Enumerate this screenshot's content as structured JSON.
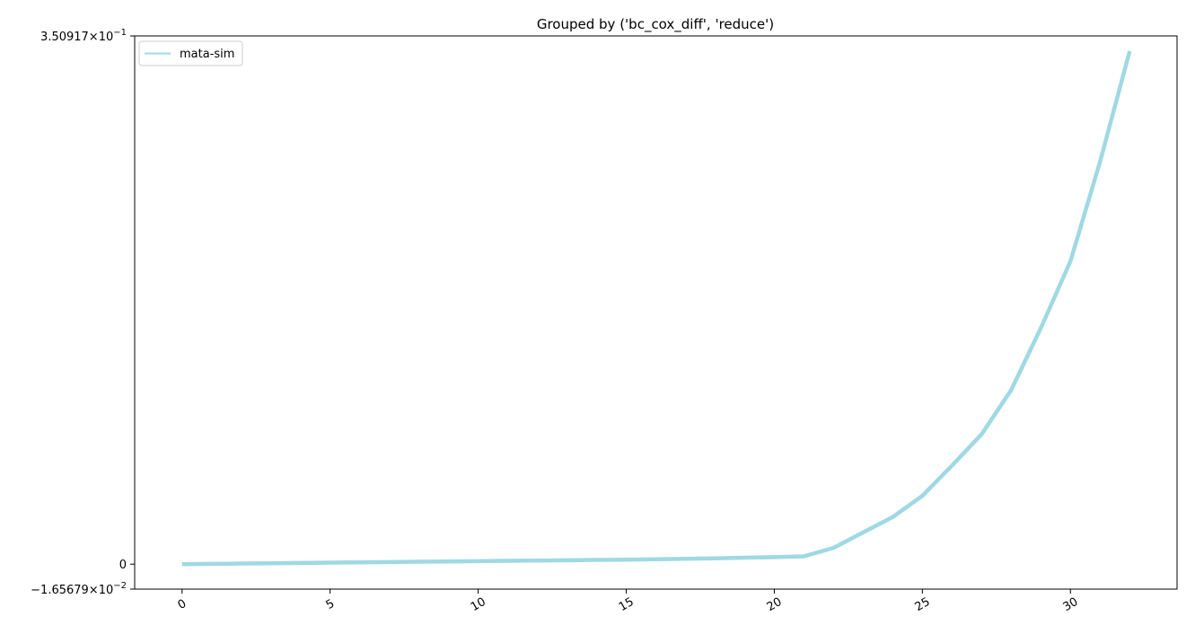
{
  "chart_data": {
    "type": "line",
    "title": "Grouped by ('bc_cox_diff', 'reduce')",
    "xlabel": "",
    "ylabel": "",
    "xlim": [
      -1.6,
      33.6
    ],
    "ylim": [
      -0.0165679,
      0.350917
    ],
    "x_ticks": [
      0,
      5,
      10,
      15,
      20,
      25,
      30
    ],
    "y_ticks": [
      {
        "value": -0.0165679,
        "mantissa": "−1.65679",
        "base": "10",
        "exp": "−2"
      },
      {
        "value": 0,
        "mantissa": "0",
        "base": "",
        "exp": ""
      },
      {
        "value": 0.350917,
        "mantissa": "3.50917",
        "base": "10",
        "exp": "−1"
      }
    ],
    "grid": false,
    "legend_position": "top-left",
    "series": [
      {
        "name": "mata-sim",
        "color": "#9fd9e3",
        "x": [
          0,
          1,
          2,
          3,
          4,
          5,
          6,
          7,
          8,
          9,
          10,
          11,
          12,
          13,
          14,
          15,
          16,
          17,
          18,
          19,
          20,
          21,
          22,
          23,
          24,
          25,
          26,
          27,
          28,
          29,
          30,
          31,
          32
        ],
        "y": [
          0,
          0.0002,
          0.0004,
          0.0006,
          0.0008,
          0.001,
          0.0012,
          0.0014,
          0.0016,
          0.0018,
          0.002,
          0.0022,
          0.0024,
          0.0026,
          0.0028,
          0.003,
          0.0033,
          0.0036,
          0.0039,
          0.0043,
          0.0047,
          0.0052,
          0.0108,
          0.0211,
          0.0313,
          0.0454,
          0.0655,
          0.0863,
          0.1157,
          0.1568,
          0.2012,
          0.2673,
          0.3408
        ]
      }
    ]
  }
}
